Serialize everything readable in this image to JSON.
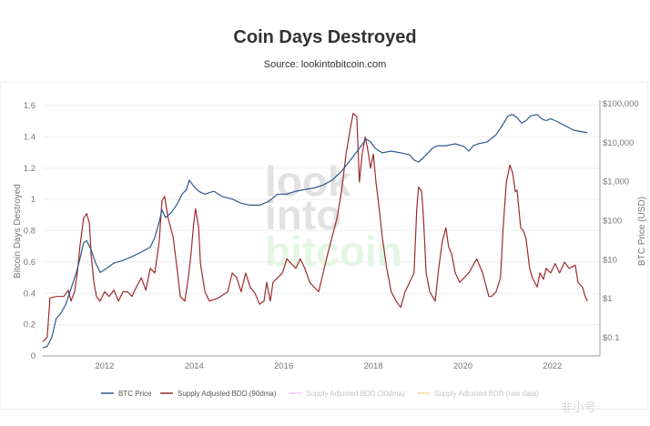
{
  "header": {
    "title": "Coin Days Destroyed",
    "source": "Source: lookintobitcoin.com"
  },
  "watermark": {
    "lines": [
      "look",
      "into",
      "bitcoin"
    ],
    "corner": "非小号"
  },
  "chart_data": {
    "type": "line",
    "title": "Coin Days Destroyed",
    "xlabel": "",
    "ylabel": "Bitcoin Days Destroyed",
    "y2label": "BTC Price (USD)",
    "xlim": [
      2010.62,
      2023.06
    ],
    "ylim": [
      0,
      1.6
    ],
    "y2lim_log": [
      0.034,
      100000
    ],
    "xticks": [
      2012,
      2014,
      2016,
      2018,
      2020,
      2022
    ],
    "xtick_labels": [
      "2012",
      "2014",
      "2016",
      "2018",
      "2020",
      "2022"
    ],
    "yticks": [
      0,
      0.2,
      0.4,
      0.6,
      0.8,
      1,
      1.2,
      1.4,
      1.6
    ],
    "ytick_labels": [
      "0",
      "0.2",
      "0.4",
      "0.6",
      "0.8",
      "1",
      "1.2",
      "1.4",
      "1.6"
    ],
    "y2ticks": [
      0.1,
      1,
      10,
      100,
      1000,
      10000,
      100000
    ],
    "y2tick_labels": [
      "$0.1",
      "$1",
      "$10",
      "$100",
      "$1,000",
      "$10,000",
      "$100,000"
    ],
    "grid": true,
    "legend_position": "bottom",
    "legend": [
      {
        "name": "BTC Price",
        "color": "#2c5a8c",
        "visible": true
      },
      {
        "name": "Supply Adjusted BDD (90dma)",
        "color": "#9e2a2b",
        "visible": true
      },
      {
        "name": "Supply Adjusted BDD (30dma)",
        "color": "#f0c8f0",
        "visible": false
      },
      {
        "name": "Supply Adjusted BDD (raw data)",
        "color": "#f5d9a0",
        "visible": false
      }
    ],
    "series": [
      {
        "name": "BTC Price",
        "axis": "right",
        "x": [
          2010.62,
          2010.72,
          2010.82,
          2010.92,
          2011.01,
          2011.13,
          2011.25,
          2011.37,
          2011.45,
          2011.53,
          2011.6,
          2011.7,
          2011.8,
          2011.9,
          2011.98,
          2012.06,
          2012.21,
          2012.41,
          2012.61,
          2012.82,
          2013.02,
          2013.12,
          2013.22,
          2013.28,
          2013.36,
          2013.49,
          2013.63,
          2013.73,
          2013.83,
          2013.89,
          2013.97,
          2014.1,
          2014.24,
          2014.44,
          2014.64,
          2014.85,
          2015.05,
          2015.25,
          2015.46,
          2015.66,
          2015.86,
          2016.07,
          2016.27,
          2016.47,
          2016.68,
          2016.88,
          2017.08,
          2017.29,
          2017.49,
          2017.69,
          2017.84,
          2017.94,
          2018.04,
          2018.2,
          2018.4,
          2018.61,
          2018.81,
          2018.91,
          2019.01,
          2019.12,
          2019.22,
          2019.32,
          2019.42,
          2019.62,
          2019.83,
          2020.03,
          2020.13,
          2020.23,
          2020.34,
          2020.54,
          2020.74,
          2020.88,
          2021.01,
          2021.11,
          2021.21,
          2021.31,
          2021.41,
          2021.51,
          2021.66,
          2021.76,
          2021.86,
          2021.96,
          2022.06,
          2022.27,
          2022.47,
          2022.67,
          2022.78
        ],
        "values": [
          0.055,
          0.06,
          0.1,
          0.31,
          0.4,
          0.7,
          1.8,
          4.7,
          10.6,
          27,
          31,
          18,
          8.2,
          4.7,
          5.3,
          6.2,
          8.2,
          9.6,
          12,
          15.6,
          21,
          37,
          93,
          190,
          120,
          160,
          280,
          480,
          630,
          1100,
          820,
          570,
          480,
          570,
          410,
          360,
          280,
          250,
          250,
          310,
          480,
          480,
          570,
          630,
          690,
          820,
          1100,
          1850,
          3600,
          7200,
          12400,
          10500,
          7200,
          5500,
          6100,
          5500,
          4900,
          3600,
          3200,
          4200,
          5500,
          7200,
          8400,
          8400,
          9400,
          8000,
          6100,
          8400,
          9400,
          10500,
          16000,
          28000,
          49000,
          53000,
          44000,
          32000,
          37000,
          49000,
          53000,
          41000,
          37000,
          41000,
          37000,
          28000,
          21000,
          19000,
          18000
        ]
      },
      {
        "name": "Supply Adjusted BDD (90dma)",
        "axis": "left",
        "x": [
          2010.62,
          2010.72,
          2010.78,
          2010.92,
          2011.09,
          2011.19,
          2011.25,
          2011.33,
          2011.39,
          2011.45,
          2011.53,
          2011.6,
          2011.66,
          2011.7,
          2011.76,
          2011.82,
          2011.9,
          2012.0,
          2012.1,
          2012.21,
          2012.31,
          2012.41,
          2012.51,
          2012.61,
          2012.71,
          2012.82,
          2012.92,
          2013.02,
          2013.12,
          2013.22,
          2013.28,
          2013.34,
          2013.42,
          2013.53,
          2013.63,
          2013.69,
          2013.79,
          2013.87,
          2013.93,
          2013.99,
          2014.03,
          2014.1,
          2014.14,
          2014.24,
          2014.34,
          2014.54,
          2014.75,
          2014.85,
          2014.95,
          2015.05,
          2015.15,
          2015.25,
          2015.36,
          2015.46,
          2015.56,
          2015.62,
          2015.7,
          2015.76,
          2015.97,
          2016.07,
          2016.17,
          2016.27,
          2016.37,
          2016.47,
          2016.58,
          2016.68,
          2016.78,
          2016.88,
          2016.98,
          2017.08,
          2017.19,
          2017.29,
          2017.39,
          2017.49,
          2017.55,
          2017.63,
          2017.69,
          2017.75,
          2017.82,
          2017.88,
          2017.94,
          2018.0,
          2018.06,
          2018.12,
          2018.2,
          2018.3,
          2018.4,
          2018.51,
          2018.61,
          2018.71,
          2018.81,
          2018.91,
          2018.97,
          2019.01,
          2019.08,
          2019.12,
          2019.18,
          2019.26,
          2019.38,
          2019.46,
          2019.54,
          2019.62,
          2019.68,
          2019.75,
          2019.83,
          2019.93,
          2020.13,
          2020.31,
          2020.44,
          2020.58,
          2020.64,
          2020.74,
          2020.84,
          2020.9,
          2020.97,
          2021.05,
          2021.11,
          2021.17,
          2021.21,
          2021.29,
          2021.35,
          2021.41,
          2021.49,
          2021.55,
          2021.66,
          2021.72,
          2021.8,
          2021.86,
          2021.96,
          2022.06,
          2022.16,
          2022.27,
          2022.37,
          2022.51,
          2022.57,
          2022.67,
          2022.73,
          2022.78
        ],
        "values": [
          0.09,
          0.12,
          0.37,
          0.38,
          0.38,
          0.42,
          0.35,
          0.41,
          0.53,
          0.7,
          0.88,
          0.91,
          0.85,
          0.65,
          0.47,
          0.38,
          0.35,
          0.41,
          0.38,
          0.42,
          0.35,
          0.41,
          0.41,
          0.38,
          0.44,
          0.5,
          0.42,
          0.56,
          0.53,
          0.73,
          0.99,
          1.02,
          0.88,
          0.76,
          0.53,
          0.38,
          0.35,
          0.5,
          0.65,
          0.85,
          0.94,
          0.82,
          0.59,
          0.41,
          0.35,
          0.37,
          0.41,
          0.53,
          0.5,
          0.41,
          0.53,
          0.44,
          0.4,
          0.33,
          0.35,
          0.47,
          0.35,
          0.47,
          0.53,
          0.62,
          0.59,
          0.56,
          0.62,
          0.56,
          0.47,
          0.44,
          0.41,
          0.53,
          0.65,
          0.76,
          0.88,
          1.05,
          1.29,
          1.46,
          1.55,
          1.53,
          1.11,
          1.29,
          1.4,
          1.31,
          1.2,
          1.29,
          1.11,
          0.97,
          0.76,
          0.56,
          0.41,
          0.35,
          0.31,
          0.41,
          0.47,
          0.53,
          0.94,
          1.08,
          1.05,
          0.88,
          0.53,
          0.41,
          0.35,
          0.56,
          0.73,
          0.82,
          0.7,
          0.65,
          0.53,
          0.47,
          0.53,
          0.62,
          0.53,
          0.38,
          0.38,
          0.41,
          0.5,
          0.82,
          1.11,
          1.22,
          1.17,
          1.05,
          1.06,
          0.82,
          0.8,
          0.75,
          0.56,
          0.5,
          0.44,
          0.53,
          0.49,
          0.56,
          0.53,
          0.59,
          0.53,
          0.6,
          0.56,
          0.58,
          0.47,
          0.44,
          0.38,
          0.35
        ]
      }
    ]
  }
}
